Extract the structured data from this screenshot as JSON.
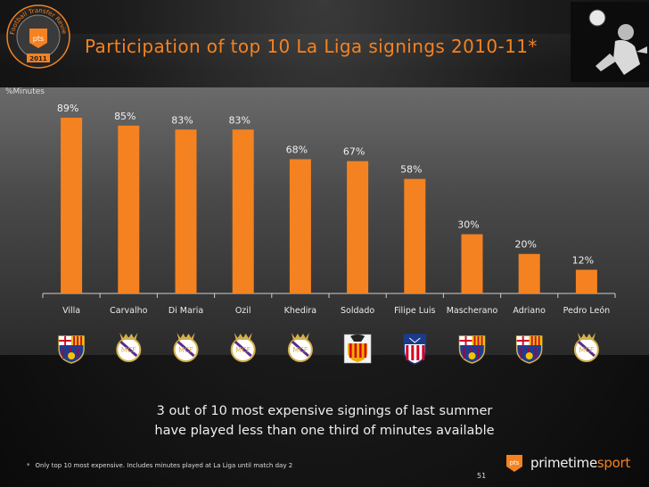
{
  "title": "Participation of top 10 La Liga signings 2010-11*",
  "unit_label": "%Minutes",
  "badge_year": "2011",
  "badge_text": "Football Transfer Review",
  "conclusion": {
    "line1": "3 out of 10 most expensive signings of last summer",
    "line2": "have played less than one third of minutes available"
  },
  "footnote_marker": "*",
  "footnote": "Only top 10 most expensive. Includes minutes played at La Liga until match day 2",
  "page_number": "51",
  "brand": {
    "name_main": "primetime",
    "name_accent": "sport",
    "logo_text": "pts"
  },
  "colors": {
    "bar": "#f58220",
    "title": "#f58220",
    "axis": "#cfcfcf",
    "background": "#1a1a1a"
  },
  "chart_data": {
    "type": "bar",
    "categories": [
      "Villa",
      "Carvalho",
      "Di Maria",
      "Ozil",
      "Khedira",
      "Soldado",
      "Filipe Luis",
      "Mascherano",
      "Adriano",
      "Pedro León"
    ],
    "values": [
      89,
      85,
      83,
      83,
      68,
      67,
      58,
      30,
      20,
      12
    ],
    "value_labels": [
      "89%",
      "85%",
      "83%",
      "83%",
      "68%",
      "67%",
      "58%",
      "30%",
      "20%",
      "12%"
    ],
    "clubs": [
      "barcelona",
      "real-madrid",
      "real-madrid",
      "real-madrid",
      "real-madrid",
      "valencia",
      "atletico-madrid",
      "barcelona",
      "barcelona",
      "real-madrid"
    ],
    "ylabel": "%Minutes",
    "ylim": [
      0,
      100
    ],
    "grid": false
  }
}
